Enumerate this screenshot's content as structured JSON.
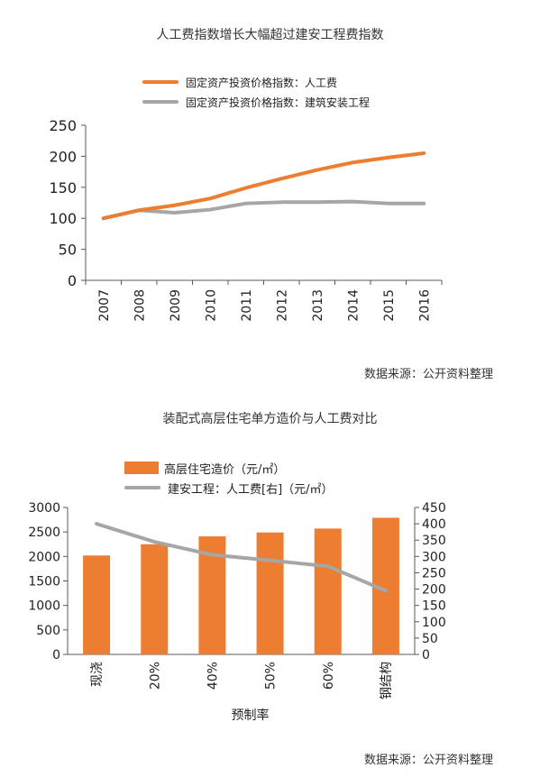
{
  "colors": {
    "orange": "#ED7D31",
    "gray": "#A6A6A6",
    "axis": "#595959"
  },
  "chart_data": [
    {
      "type": "line",
      "title": "人工费指数增长大幅超过建安工程费指数",
      "x": [
        "2007",
        "2008",
        "2009",
        "2010",
        "2011",
        "2012",
        "2013",
        "2014",
        "2015",
        "2016"
      ],
      "series": [
        {
          "name": "固定资产投资价格指数：人工费",
          "values": [
            100,
            113,
            121,
            132,
            149,
            164,
            178,
            190,
            198,
            205
          ]
        },
        {
          "name": "固定资产投资价格指数：建筑安装工程",
          "values": [
            100,
            113,
            109,
            114,
            124,
            126,
            126,
            127,
            124,
            124
          ]
        }
      ],
      "ylim": [
        0,
        250
      ],
      "yticks": [
        0,
        50,
        100,
        150,
        200,
        250
      ],
      "grid": false,
      "legend": "top",
      "source": "数据来源：公开资料整理"
    },
    {
      "type": "bar",
      "title": "装配式高层住宅单方造价与人工费对比",
      "xlabel": "预制率",
      "categories": [
        "现浇",
        "20%",
        "40%",
        "50%",
        "60%",
        "钢结构"
      ],
      "series": [
        {
          "name": "高层住宅造价（元/㎡）",
          "type": "bar",
          "axis": "left",
          "values": [
            2020,
            2250,
            2410,
            2490,
            2570,
            2790
          ]
        },
        {
          "name": "建安工程：人工费[右]（元/㎡）",
          "type": "line",
          "axis": "right",
          "values": [
            400,
            345,
            305,
            288,
            270,
            195
          ]
        }
      ],
      "ylim": [
        0,
        3000
      ],
      "yticks": [
        0,
        500,
        1000,
        1500,
        2000,
        2500,
        3000
      ],
      "y2lim": [
        0,
        450
      ],
      "y2ticks": [
        0,
        50,
        100,
        150,
        200,
        250,
        300,
        350,
        400,
        450
      ],
      "grid": false,
      "legend": "top",
      "source": "数据来源：公开资料整理"
    }
  ]
}
